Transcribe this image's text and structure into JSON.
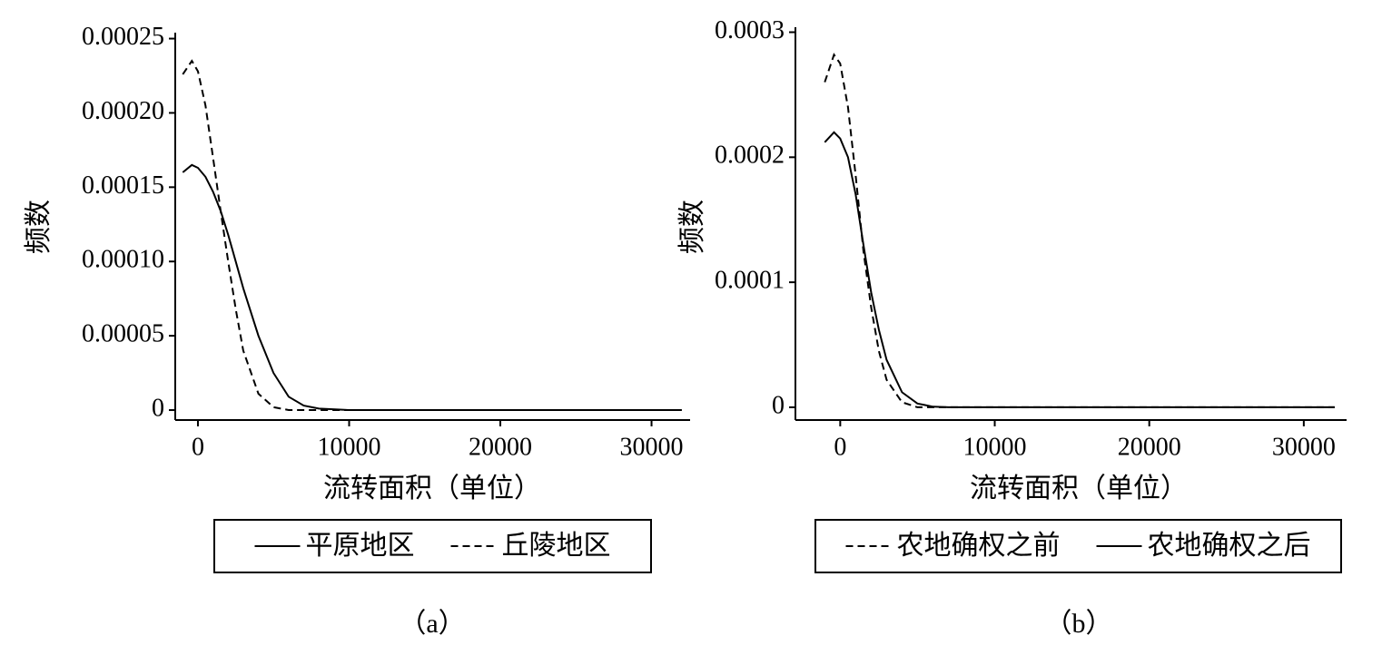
{
  "chart_data": [
    {
      "type": "line",
      "caption": "（a）",
      "xlabel": "流转面积（单位）",
      "ylabel": "频数",
      "x": [
        -1000,
        -400,
        0,
        500,
        1000,
        1500,
        2000,
        2500,
        3000,
        4000,
        5000,
        6000,
        7000,
        8000,
        10000,
        15000,
        20000,
        25000,
        32000
      ],
      "series": [
        {
          "name": "平原地区",
          "color": "#000000",
          "linestyle": "solid",
          "values": [
            0.00016,
            0.000165,
            0.000163,
            0.000157,
            0.000147,
            0.000134,
            0.000118,
            0.0001,
            8.2e-05,
            5e-05,
            2.5e-05,
            9e-06,
            3e-06,
            1e-06,
            0,
            0,
            0,
            0,
            0
          ]
        },
        {
          "name": "丘陵地区",
          "color": "#000000",
          "linestyle": "dashed",
          "values": [
            0.000226,
            0.000235,
            0.000228,
            0.000205,
            0.00017,
            0.000134,
            0.0001,
            6.8e-05,
            4e-05,
            1.1e-05,
            2e-06,
            0,
            0,
            0,
            0,
            0,
            0,
            0,
            0
          ]
        }
      ],
      "xlim": [
        -1500,
        32550
      ],
      "xticks": [
        0,
        10000,
        20000,
        30000
      ],
      "ylim": [
        -6.7e-06,
        0.000254
      ],
      "yticks": [
        0,
        5e-05,
        {
          "value": 0.0001,
          "label": "0.00010"
        },
        0.00015,
        {
          "value": 0.0002,
          "label": "0.00020"
        },
        0.00025
      ],
      "legend": "below"
    },
    {
      "type": "line",
      "caption": "（b）",
      "xlabel": "流转面积（单位）",
      "ylabel": "频数",
      "x": [
        -1000,
        -400,
        0,
        500,
        1000,
        1500,
        2000,
        2500,
        3000,
        4000,
        5000,
        6000,
        7000,
        8000,
        10000,
        15000,
        20000,
        25000,
        32000
      ],
      "series": [
        {
          "name": "农地确权之前",
          "color": "#000000",
          "linestyle": "dashed",
          "values": [
            0.00026,
            0.000282,
            0.000275,
            0.00024,
            0.000185,
            0.000125,
            8e-05,
            4.5e-05,
            2.2e-05,
            4e-06,
            0,
            0,
            0,
            0,
            0,
            0,
            0,
            0,
            0
          ]
        },
        {
          "name": "农地确权之后",
          "color": "#000000",
          "linestyle": "solid",
          "values": [
            0.000212,
            0.00022,
            0.000215,
            0.0002,
            0.00017,
            0.00013,
            9.2e-05,
            6.2e-05,
            3.8e-05,
            1.2e-05,
            3e-06,
            5e-07,
            0,
            0,
            0,
            0,
            0,
            0,
            0
          ]
        }
      ],
      "xlim": [
        -2900,
        32770
      ],
      "xticks": [
        0,
        10000,
        20000,
        30000
      ],
      "ylim": [
        -1.02e-05,
        0.000304
      ],
      "yticks": [
        0,
        0.0001,
        0.0002,
        0.0003
      ],
      "legend": "below"
    }
  ]
}
